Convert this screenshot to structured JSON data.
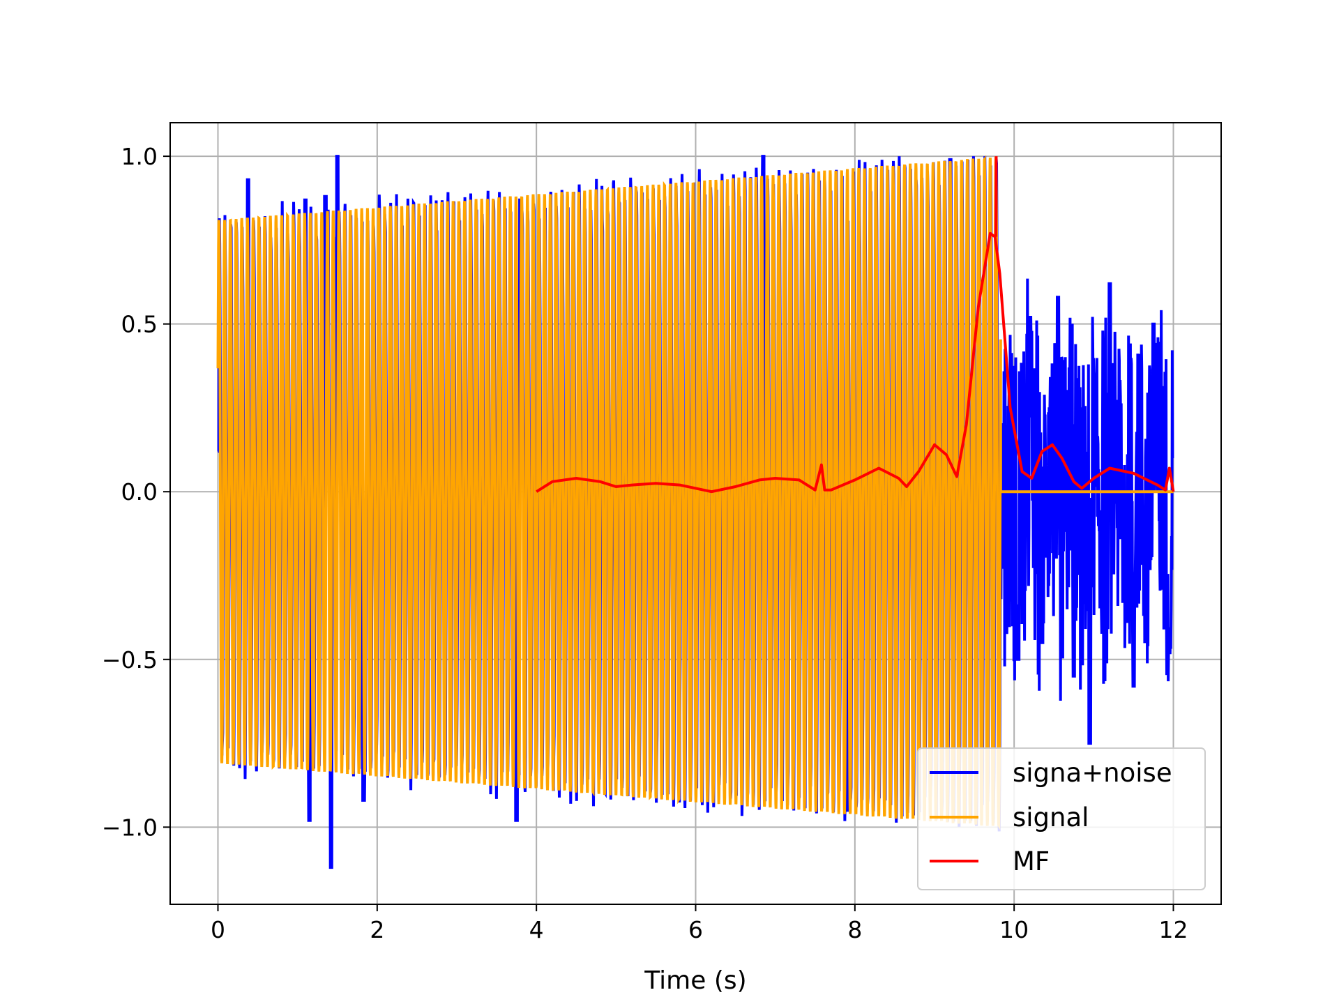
{
  "chart_data": {
    "type": "line",
    "title": "",
    "xlabel": "Time (s)",
    "ylabel": "",
    "xlim": [
      -0.6,
      12.6
    ],
    "ylim": [
      -1.23,
      1.1
    ],
    "x_ticks": [
      0,
      2,
      4,
      6,
      8,
      10,
      12
    ],
    "x_tick_labels": [
      "0",
      "2",
      "4",
      "6",
      "8",
      "10",
      "12"
    ],
    "y_ticks": [
      1.0,
      0.5,
      0.0,
      -0.5,
      -1.0
    ],
    "y_tick_labels": [
      "1.0",
      "0.5",
      "0.0",
      "−0.5",
      "−1.0"
    ],
    "grid": true,
    "legend_position": "lower-right",
    "series": [
      {
        "name": "signa+noise",
        "color": "#0000ff",
        "description_points": {
          "x": [
            0.0,
            0.38,
            1.1,
            1.15,
            1.35,
            1.42,
            1.5,
            1.83,
            3.75,
            3.8,
            6.85,
            7.9,
            9.2,
            9.85,
            9.9,
            10.05,
            10.2,
            10.35,
            10.55,
            10.75,
            10.95,
            11.2,
            11.5,
            11.75,
            11.95,
            12.0
          ],
          "y": [
            0.12,
            0.93,
            0.87,
            -0.98,
            0.88,
            -1.12,
            1.0,
            -0.92,
            -0.98,
            0.87,
            1.0,
            -0.95,
            0.99,
            0.2,
            -0.42,
            -0.5,
            0.52,
            -0.45,
            0.58,
            -0.55,
            -0.75,
            0.62,
            -0.58,
            0.5,
            -0.48,
            0.1
          ]
        }
      },
      {
        "name": "signal",
        "color": "#ffa500",
        "amp_start": 0.81,
        "amp_end": 1.0,
        "t_end": 9.83,
        "cycles": 137
      },
      {
        "name": "MF",
        "color": "#ff0000",
        "x": [
          4.0,
          4.2,
          4.5,
          4.8,
          5.0,
          5.2,
          5.5,
          5.8,
          6.2,
          6.5,
          6.8,
          7.0,
          7.3,
          7.5,
          7.58,
          7.62,
          7.7,
          8.0,
          8.3,
          8.55,
          8.65,
          8.8,
          9.0,
          9.15,
          9.28,
          9.4,
          9.55,
          9.7,
          9.76,
          9.82,
          9.95,
          10.1,
          10.22,
          10.35,
          10.48,
          10.6,
          10.75,
          10.85,
          11.0,
          11.2,
          11.5,
          11.8,
          11.9,
          11.95,
          12.0
        ],
        "y": [
          0.0,
          0.03,
          0.04,
          0.03,
          0.015,
          0.02,
          0.025,
          0.02,
          0.0,
          0.015,
          0.035,
          0.04,
          0.035,
          0.005,
          0.08,
          0.005,
          0.005,
          0.035,
          0.07,
          0.04,
          0.015,
          0.06,
          0.14,
          0.11,
          0.045,
          0.2,
          0.55,
          0.77,
          0.76,
          0.65,
          0.25,
          0.06,
          0.04,
          0.12,
          0.14,
          0.1,
          0.03,
          0.01,
          0.04,
          0.07,
          0.055,
          0.02,
          0.005,
          0.07,
          0.0
        ]
      }
    ]
  }
}
